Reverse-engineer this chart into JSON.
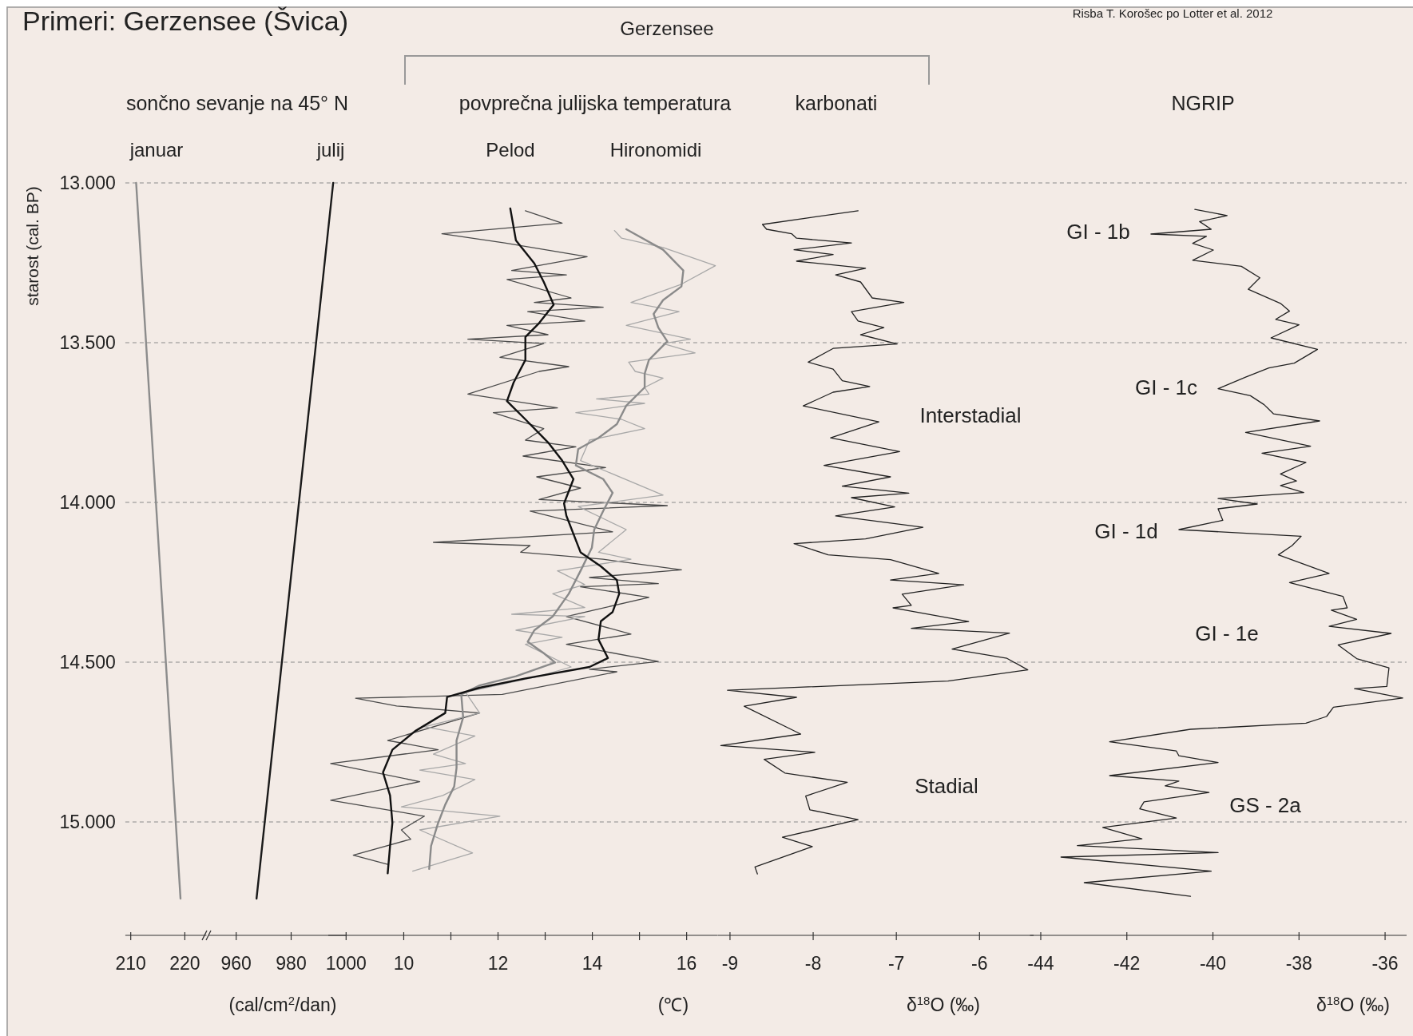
{
  "chart_data": [
    {
      "type": "line",
      "title": "sončno sevanje na 45° N",
      "ylabel": "starost (cal. BP)",
      "annotations": [
        "Primeri: Gerzensee (Švica)"
      ],
      "series": [
        {
          "name": "januar",
          "color": "#8c8c8c",
          "x": [
            211,
            219.2
          ],
          "values": [
            13000,
            15240
          ]
        }
      ],
      "xlim": [
        209,
        224
      ],
      "xticks": [
        210,
        220
      ],
      "ylim": [
        15355,
        13000
      ],
      "yticks": [
        {
          "value": 13000,
          "label": "13.000"
        },
        {
          "value": 13500,
          "label": "13.500"
        },
        {
          "value": 14000,
          "label": "14.000"
        },
        {
          "value": 14500,
          "label": "14.500"
        },
        {
          "value": 15000,
          "label": "15.000"
        }
      ],
      "grid": "y"
    },
    {
      "type": "line",
      "xlabel": "(cal/cm$^{2}$/dan)",
      "series": [
        {
          "name": "julij",
          "color": "#1a1a1a",
          "x": [
            995.3,
            967.4
          ],
          "values": [
            13000,
            15240
          ]
        }
      ],
      "xlim": [
        950,
        1000
      ],
      "xticks": [
        960,
        980,
        1000
      ],
      "ylim": [
        15355,
        13000
      ],
      "tick_labels": "x"
    },
    {
      "type": "line",
      "title": "povprečna julijska temperatura",
      "xlabel": "(℃)",
      "annotations": [
        "Gerzensee"
      ],
      "series": [
        {
          "color": "#4a4a4a",
          "x": [
            12.58,
            13.36,
            10.81,
            12.14,
            13.89,
            12.29,
            13.45,
            12.19,
            13.55,
            12.77,
            14.23,
            12.63,
            13.84,
            12.19,
            13.06,
            11.36,
            12.97,
            12.04,
            13.5,
            12.87,
            11.36,
            13.26,
            11.9,
            12.97,
            12.58,
            13.65,
            12.53,
            14.28,
            12.82,
            13.75,
            12.87,
            15.59,
            12.68,
            14.43,
            10.63,
            12.68,
            12.48,
            14.23,
            15.89,
            13.94,
            15.4,
            13.75,
            15.2,
            13.45,
            14.82,
            13.45,
            15.4,
            13.94,
            14.52,
            12.09,
            8.98,
            9.85,
            11.61,
            9.66,
            10.73,
            8.45,
            10.34,
            8.45,
            10.44,
            9.95,
            10.15,
            8.93,
            9.66
          ],
          "values": [
            13087,
            13126,
            13159,
            13188,
            13231,
            13274,
            13288,
            13302,
            13360,
            13374,
            13389,
            13403,
            13432,
            13446,
            13475,
            13489,
            13503,
            13546,
            13575,
            13590,
            13661,
            13704,
            13719,
            13769,
            13805,
            13826,
            13855,
            13891,
            13920,
            13955,
            13991,
            14010,
            14027,
            14092,
            14125,
            14135,
            14156,
            14178,
            14211,
            14235,
            14254,
            14264,
            14297,
            14357,
            14412,
            14444,
            14498,
            14522,
            14530,
            14601,
            14613,
            14637,
            14659,
            14745,
            14774,
            14817,
            14874,
            14932,
            14982,
            15025,
            15054,
            15104,
            15133
          ]
        },
        {
          "color": "#a8a8a8",
          "x": [
            14.47,
            14.62,
            15.5,
            16.61,
            15.89,
            14.82,
            15.84,
            14.72,
            16.08,
            15.5,
            16.18,
            14.77,
            14.91,
            15.5,
            15.11,
            15.2,
            14.09,
            15.11,
            13.65,
            14.62,
            15.11,
            13.94,
            13.75,
            15.5,
            13.7,
            14.72,
            14.13,
            14.82,
            13.26,
            13.84,
            13.16,
            13.84,
            12.29,
            13.84,
            12.38,
            13.36,
            12.58,
            13.55,
            12.87,
            11.31,
            11.61,
            10.44,
            11.51,
            10.63,
            11.31,
            10.34,
            11.51,
            10.83,
            9.95,
            12.04,
            10.34,
            11.46,
            10.19
          ],
          "values": [
            13149,
            13173,
            13202,
            13259,
            13317,
            13374,
            13403,
            13446,
            13489,
            13503,
            13532,
            13561,
            13590,
            13611,
            13640,
            13661,
            13676,
            13690,
            13719,
            13740,
            13769,
            13805,
            13869,
            13977,
            14013,
            14085,
            14156,
            14178,
            14214,
            14257,
            14286,
            14329,
            14350,
            14357,
            14400,
            14422,
            14444,
            14515,
            14544,
            14594,
            14659,
            14702,
            14731,
            14788,
            14817,
            14838,
            14867,
            14917,
            14953,
            14982,
            15025,
            15097,
            15154
          ]
        },
        {
          "name": "Hironomidi",
          "color": "#8a8a8a",
          "x": [
            14.72,
            15.5,
            15.93,
            15.89,
            15.5,
            15.3,
            15.4,
            15.59,
            15.2,
            15.11,
            15.11,
            14.72,
            14.52,
            14.13,
            13.7,
            13.65,
            14.23,
            14.43,
            14.23,
            14.04,
            13.99,
            13.75,
            13.5,
            13.16,
            12.77,
            12.63,
            12.97,
            13.21,
            12.38,
            11.61,
            11.22,
            11.26,
            11.12,
            11.12,
            11.07,
            10.88,
            10.73,
            10.58,
            10.54
          ],
          "values": [
            13145,
            13209,
            13274,
            13324,
            13367,
            13410,
            13453,
            13496,
            13554,
            13597,
            13640,
            13697,
            13755,
            13798,
            13833,
            13884,
            13927,
            13970,
            14027,
            14085,
            14142,
            14214,
            14286,
            14357,
            14400,
            14436,
            14472,
            14501,
            14544,
            14573,
            14601,
            14673,
            14745,
            14831,
            14889,
            14946,
            15003,
            15075,
            15147
          ]
        },
        {
          "name": "Pelod",
          "color": "#111111",
          "x": [
            12.26,
            12.38,
            12.77,
            12.97,
            13.18,
            12.87,
            12.58,
            12.58,
            12.33,
            12.19,
            12.58,
            13.06,
            13.36,
            13.6,
            13.4,
            13.45,
            13.75,
            14.18,
            14.52,
            14.57,
            14.43,
            14.18,
            14.13,
            14.33,
            13.94,
            12.58,
            11.61,
            10.92,
            10.88,
            10.24,
            9.76,
            9.56,
            9.71,
            9.76,
            9.71,
            9.66
          ],
          "values": [
            13080,
            13180,
            13252,
            13310,
            13381,
            13439,
            13482,
            13554,
            13625,
            13683,
            13740,
            13812,
            13869,
            13927,
            14003,
            14042,
            14156,
            14200,
            14243,
            14286,
            14343,
            14372,
            14429,
            14487,
            14515,
            14551,
            14580,
            14609,
            14659,
            14716,
            14774,
            14845,
            14917,
            15003,
            15075,
            15161
          ]
        }
      ],
      "xlim": [
        8.4,
        16.65
      ],
      "xticks": [
        10,
        {
          "value": 11,
          "label": null
        },
        12,
        {
          "value": 13,
          "label": null
        },
        14,
        {
          "value": 15,
          "label": null
        },
        16
      ],
      "ylim": [
        15355,
        13000
      ],
      "tick_labels": "x"
    },
    {
      "type": "line",
      "title": "karbonati",
      "xlabel": "δ$^{18}$O (‰)",
      "annotations": [
        "Interstadial",
        "Stadial"
      ],
      "series": [
        {
          "color": "#222222",
          "x": [
            -7.46,
            -8.61,
            -8.56,
            -8.26,
            -8.2,
            -7.54,
            -8.23,
            -7.76,
            -8.2,
            -7.37,
            -7.73,
            -7.43,
            -7.29,
            -6.91,
            -7.54,
            -7.46,
            -7.15,
            -7.43,
            -6.99,
            -7.76,
            -8.06,
            -7.76,
            -7.65,
            -7.32,
            -7.76,
            -8.12,
            -7.21,
            -7.79,
            -6.96,
            -7.87,
            -7.07,
            -7.65,
            -6.85,
            -7.54,
            -7.02,
            -7.73,
            -6.68,
            -7.37,
            -8.23,
            -7.82,
            -7.07,
            -6.49,
            -7.07,
            -6.19,
            -6.93,
            -6.82,
            -7.04,
            -6.13,
            -6.82,
            -5.64,
            -6.33,
            -5.67,
            -5.42,
            -6.38,
            -9.03,
            -8.2,
            -8.83,
            -8.15,
            -9.11,
            -7.98,
            -8.59,
            -8.34,
            -7.59,
            -8.09,
            -8.04,
            -7.46,
            -8.37,
            -8.01,
            -8.7,
            -8.67
          ],
          "values": [
            13087,
            13130,
            13145,
            13159,
            13173,
            13188,
            13209,
            13224,
            13245,
            13267,
            13288,
            13310,
            13360,
            13374,
            13403,
            13432,
            13453,
            13475,
            13504,
            13518,
            13561,
            13583,
            13619,
            13637,
            13655,
            13698,
            13748,
            13798,
            13841,
            13884,
            13920,
            13949,
            13971,
            13985,
            14014,
            14042,
            14078,
            14114,
            14129,
            14164,
            14179,
            14222,
            14243,
            14258,
            14287,
            14322,
            14330,
            14373,
            14394,
            14409,
            14459,
            14488,
            14524,
            14559,
            14588,
            14610,
            14638,
            14725,
            14761,
            14782,
            14804,
            14847,
            14876,
            14919,
            14962,
            14993,
            15048,
            15077,
            15141,
            15163
          ]
        }
      ],
      "xlim": [
        -9.15,
        -5.35
      ],
      "xticks": [
        -9,
        -8,
        -7,
        -6
      ],
      "ylim": [
        15355,
        13000
      ],
      "tick_labels": "x"
    },
    {
      "type": "line",
      "title": "NGRIP",
      "xlabel": "δ$^{18}$O (‰)",
      "annotations": [
        "GI - 1b",
        "GI - 1c",
        "GI - 1d",
        "GI - 1e",
        "GS - 2a",
        "Risba T. Korošec po Lotter et al. 2012"
      ],
      "series": [
        {
          "color": "#222222",
          "x": [
            -40.42,
            -39.67,
            -40.31,
            -40.04,
            -41.44,
            -40.15,
            -40.47,
            -39.99,
            -40.47,
            -39.34,
            -38.91,
            -39.18,
            -38.43,
            -38.22,
            -38.54,
            -38.0,
            -38.65,
            -37.57,
            -38.11,
            -38.7,
            -39.24,
            -39.88,
            -39.13,
            -38.81,
            -38.59,
            -37.52,
            -39.24,
            -37.73,
            -38.86,
            -37.84,
            -38.43,
            -38.06,
            -38.43,
            -37.89,
            -39.88,
            -38.97,
            -39.88,
            -39.77,
            -40.79,
            -37.95,
            -38.16,
            -38.48,
            -37.3,
            -38.22,
            -36.98,
            -36.88,
            -37.25,
            -36.66,
            -37.3,
            -35.86,
            -37.09,
            -36.66,
            -35.91,
            -35.96,
            -36.71,
            -35.59,
            -37.2,
            -37.36,
            -37.84,
            -40.52,
            -42.4,
            -40.85,
            -40.79,
            -39.88,
            -42.4,
            -40.79,
            -41.11,
            -40.09,
            -41.6,
            -41.7,
            -40.85,
            -42.56,
            -41.65,
            -43.15,
            -39.88,
            -43.53,
            -40.04,
            -42.99,
            -40.52
          ],
          "values": [
            13083,
            13102,
            13121,
            13145,
            13160,
            13167,
            13189,
            13210,
            13242,
            13261,
            13297,
            13333,
            13377,
            13401,
            13427,
            13444,
            13485,
            13521,
            13564,
            13579,
            13608,
            13644,
            13666,
            13694,
            13723,
            13745,
            13781,
            13824,
            13846,
            13875,
            13911,
            13933,
            13947,
            13969,
            13988,
            14005,
            14020,
            14056,
            14085,
            14106,
            14135,
            14164,
            14222,
            14251,
            14294,
            14330,
            14337,
            14366,
            14388,
            14410,
            14446,
            14489,
            14518,
            14576,
            14583,
            14612,
            14641,
            14670,
            14691,
            14710,
            14749,
            14778,
            14793,
            14814,
            14855,
            14872,
            14887,
            14908,
            14937,
            14959,
            14988,
            15017,
            15053,
            15074,
            15096,
            15110,
            15154,
            15190,
            15233
          ]
        }
      ],
      "xlim": [
        -44.25,
        -35.5
      ],
      "xticks": [
        -44,
        -42,
        -40,
        -38,
        -36
      ],
      "ylim": [
        15355,
        13000
      ],
      "tick_labels": "x"
    }
  ]
}
